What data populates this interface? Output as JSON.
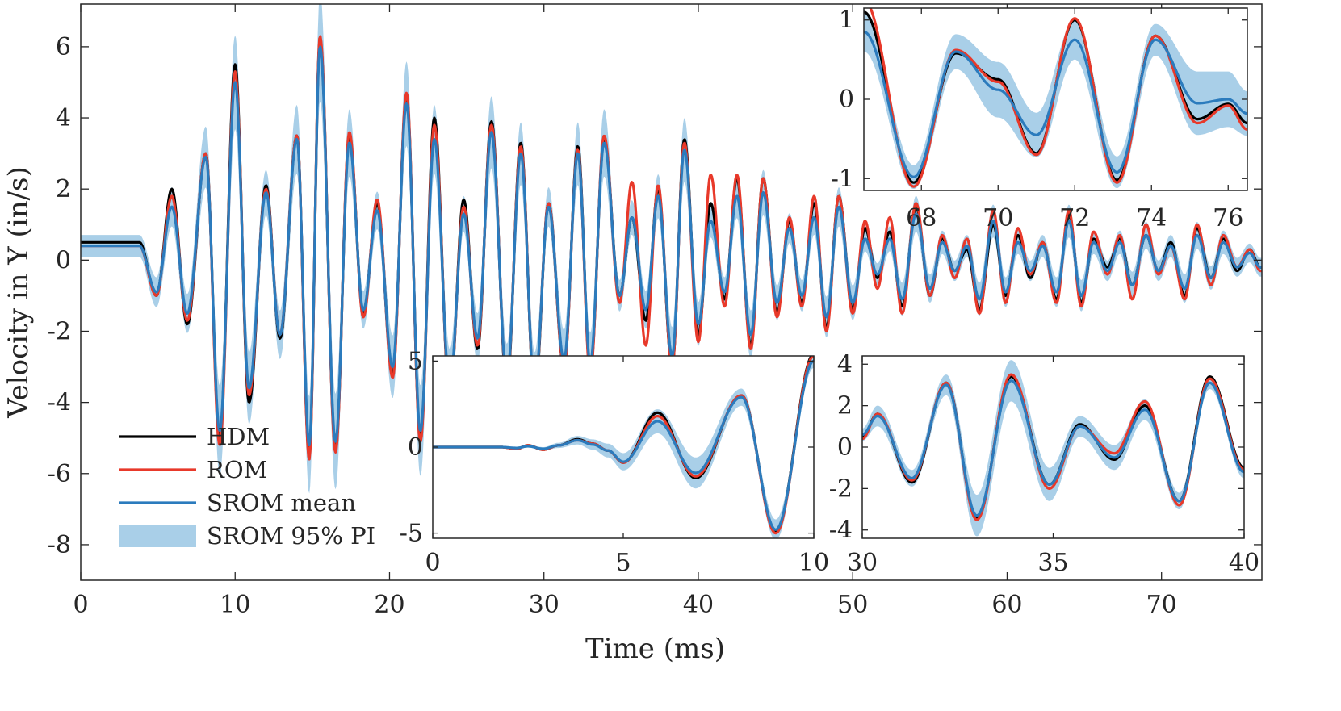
{
  "colors": {
    "hdm": "#000000",
    "rom": "#e8392a",
    "srom_mean": "#2b7bbd",
    "srom_pi": "#a9cfe8",
    "axis": "#262626"
  },
  "chart_data": [
    {
      "id": "main",
      "type": "line",
      "xlabel": "Time (ms)",
      "ylabel": "Velocity in Y (in/s)",
      "xlim": [
        0,
        76.5
      ],
      "ylim": [
        -9,
        7.2
      ],
      "xticks": [
        0,
        10,
        20,
        30,
        40,
        50,
        60,
        70
      ],
      "yticks": [
        -8,
        -6,
        -4,
        -2,
        0,
        2,
        4,
        6
      ],
      "xtick_labels": [
        "0",
        "10",
        "20",
        "30",
        "40",
        "50",
        "60",
        "70"
      ],
      "ytick_labels": [
        "-8",
        "-6",
        "-4",
        "-2",
        "0",
        "2",
        "4",
        "6"
      ],
      "legend": {
        "position": "bottom-left",
        "entries": [
          "HDM",
          "ROM",
          "SROM mean",
          "SROM 95% PI"
        ]
      },
      "series": [
        {
          "name": "HDM",
          "color_key": "hdm"
        },
        {
          "name": "ROM",
          "color_key": "rom"
        },
        {
          "name": "SROM mean",
          "color_key": "srom_mean"
        },
        {
          "name": "SROM 95% PI",
          "color_key": "srom_pi",
          "kind": "band"
        }
      ],
      "peaks": {
        "t": [
          3.8,
          4.9,
          5.9,
          6.9,
          8.1,
          9.0,
          10.0,
          10.9,
          12.0,
          12.9,
          14.0,
          14.8,
          15.5,
          16.5,
          17.4,
          18.3,
          19.2,
          20.2,
          21.1,
          22.0,
          22.9,
          23.9,
          24.8,
          25.7,
          26.6,
          27.6,
          28.5,
          29.4,
          30.3,
          31.3,
          32.2,
          33.0,
          33.9,
          34.9,
          35.7,
          36.6,
          37.4,
          38.3,
          39.1,
          40.0,
          40.8,
          41.7,
          42.5,
          43.4,
          44.2,
          45.1,
          45.9,
          46.7,
          47.5,
          48.3,
          49.1,
          50.0,
          50.8,
          51.6,
          52.4,
          53.2,
          54.1,
          55.0,
          55.8,
          56.6,
          57.4,
          58.2,
          59.1,
          59.9,
          60.7,
          61.5,
          62.3,
          63.2,
          64.0,
          64.8,
          65.6,
          66.5,
          67.3,
          68.1,
          69.0,
          69.8,
          70.6,
          71.5,
          72.3,
          73.2,
          74.0,
          74.9,
          75.7,
          76.4
        ],
        "hdm": [
          0.5,
          -1.0,
          2.0,
          -1.8,
          3.0,
          -5.0,
          5.5,
          -4.0,
          2.1,
          -2.2,
          3.5,
          -5.5,
          6.2,
          -5.3,
          3.5,
          -1.5,
          1.6,
          -3.2,
          4.6,
          -5.0,
          4.0,
          -3.8,
          1.7,
          -2.5,
          3.9,
          -3.5,
          3.3,
          -3.8,
          1.6,
          -3.0,
          3.2,
          -3.1,
          3.4,
          -1.0,
          1.2,
          -1.7,
          2.0,
          -3.0,
          3.4,
          -2.1,
          1.6,
          -1.1,
          2.3,
          -2.4,
          2.3,
          -1.5,
          1.1,
          -1.2,
          1.6,
          -1.9,
          1.8,
          -1.4,
          0.9,
          -0.5,
          0.8,
          -1.3,
          1.5,
          -1.0,
          0.6,
          -0.3,
          0.3,
          -1.4,
          1.0,
          -1.0,
          0.7,
          -0.5,
          0.5,
          -1.1,
          1.3,
          -1.2,
          0.6,
          -0.2,
          0.6,
          -0.7,
          0.7,
          -0.3,
          0.5,
          -1.0,
          0.9,
          -0.5,
          0.6,
          -0.3,
          0.3,
          -0.2
        ],
        "rom": [
          0.4,
          -1.0,
          1.8,
          -1.7,
          3.0,
          -5.2,
          5.3,
          -3.8,
          2.0,
          -2.1,
          3.5,
          -5.6,
          6.3,
          -5.4,
          3.6,
          -1.6,
          1.7,
          -3.3,
          4.7,
          -5.1,
          3.8,
          -3.7,
          1.5,
          -2.4,
          3.8,
          -3.4,
          3.2,
          -3.7,
          1.6,
          -3.0,
          3.1,
          -3.2,
          3.5,
          -1.2,
          2.2,
          -2.4,
          2.1,
          -3.0,
          3.3,
          -2.3,
          2.4,
          -1.3,
          2.4,
          -2.5,
          2.3,
          -1.6,
          1.2,
          -1.3,
          1.8,
          -2.0,
          1.8,
          -1.5,
          1.1,
          -0.8,
          1.2,
          -1.5,
          1.6,
          -1.0,
          0.7,
          -0.5,
          0.6,
          -1.5,
          1.4,
          -1.2,
          0.9,
          -0.4,
          0.5,
          -1.2,
          1.4,
          -1.3,
          0.8,
          -0.4,
          0.7,
          -1.1,
          1.0,
          -0.4,
          0.4,
          -1.1,
          1.0,
          -0.7,
          0.7,
          -0.2,
          0.3,
          -0.3
        ],
        "srom": [
          0.4,
          -0.9,
          1.5,
          -1.5,
          2.9,
          -4.8,
          5.0,
          -3.6,
          1.9,
          -2.1,
          3.4,
          -5.2,
          6.0,
          -5.1,
          3.3,
          -1.4,
          1.4,
          -3.0,
          4.4,
          -4.8,
          3.4,
          -3.5,
          1.3,
          -2.2,
          3.6,
          -3.3,
          3.0,
          -3.6,
          1.5,
          -2.8,
          3.0,
          -2.9,
          3.3,
          -1.0,
          1.2,
          -1.4,
          1.8,
          -2.7,
          3.1,
          -1.8,
          1.1,
          -0.9,
          1.8,
          -2.1,
          1.9,
          -1.2,
          0.9,
          -1.0,
          1.2,
          -1.6,
          1.5,
          -1.2,
          0.6,
          -0.4,
          0.6,
          -1.1,
          1.3,
          -0.8,
          0.5,
          -0.3,
          0.4,
          -1.1,
          1.1,
          -0.9,
          0.5,
          -0.3,
          0.4,
          -0.9,
          1.1,
          -1.0,
          0.5,
          -0.3,
          0.5,
          -0.7,
          0.7,
          -0.3,
          0.4,
          -0.8,
          0.7,
          -0.5,
          0.5,
          -0.2,
          0.2,
          -0.2
        ]
      }
    },
    {
      "id": "inset-top-right",
      "type": "line",
      "xlim": [
        66.5,
        76.5
      ],
      "ylim": [
        -1.15,
        1.15
      ],
      "xticks": [
        68,
        70,
        72,
        74,
        76
      ],
      "yticks": [
        -1,
        0,
        1
      ],
      "xtick_labels": [
        "68",
        "70",
        "72",
        "74",
        "76"
      ],
      "ytick_labels": [
        "-1",
        "0",
        "1"
      ],
      "peaks": {
        "t": [
          66.5,
          67.8,
          68.9,
          70.0,
          71.0,
          72.0,
          73.1,
          74.1,
          75.2,
          76.0,
          76.5
        ],
        "hdm": [
          1.1,
          -1.05,
          0.58,
          0.25,
          -0.68,
          1.0,
          -1.02,
          0.8,
          -0.25,
          -0.06,
          -0.3
        ],
        "rom": [
          1.25,
          -1.1,
          0.62,
          0.22,
          -0.7,
          1.02,
          -1.05,
          0.8,
          -0.3,
          -0.08,
          -0.38
        ],
        "srom": [
          0.85,
          -0.98,
          0.6,
          0.12,
          -0.45,
          0.75,
          -0.92,
          0.75,
          -0.05,
          0.0,
          -0.18
        ],
        "pi_half": [
          0.25,
          0.15,
          0.22,
          0.35,
          0.28,
          0.25,
          0.2,
          0.2,
          0.4,
          0.35,
          0.28
        ]
      }
    },
    {
      "id": "inset-bottom-middle",
      "type": "line",
      "xlim": [
        0,
        10
      ],
      "ylim": [
        -5.3,
        5.3
      ],
      "xticks": [
        0,
        5,
        10
      ],
      "yticks": [
        -5,
        0,
        5
      ],
      "xtick_labels": [
        "0",
        "5",
        "10"
      ],
      "ytick_labels": [
        "-5",
        "0",
        "5"
      ],
      "peaks": {
        "t": [
          0,
          1.8,
          2.2,
          2.5,
          2.9,
          3.3,
          3.8,
          4.2,
          4.6,
          5.0,
          5.9,
          6.9,
          8.1,
          9.0,
          10.0
        ],
        "hdm": [
          0,
          0,
          -0.1,
          0.1,
          -0.15,
          0.1,
          0.45,
          0.2,
          -0.2,
          -0.9,
          2.0,
          -1.8,
          3.0,
          -4.9,
          5.4
        ],
        "rom": [
          0,
          0,
          -0.1,
          0.1,
          -0.15,
          0.1,
          0.4,
          0.2,
          -0.2,
          -0.9,
          1.8,
          -1.7,
          3.0,
          -5.0,
          5.3
        ],
        "srom": [
          0,
          0,
          -0.05,
          0.05,
          -0.1,
          0.1,
          0.4,
          0.15,
          -0.2,
          -0.85,
          1.5,
          -1.5,
          2.9,
          -4.8,
          5.0
        ],
        "pi_half": [
          0,
          0.02,
          0.05,
          0.08,
          0.1,
          0.15,
          0.25,
          0.3,
          0.4,
          0.5,
          0.7,
          0.9,
          0.5,
          0.6,
          0.4
        ]
      }
    },
    {
      "id": "inset-bottom-right",
      "type": "line",
      "xlim": [
        30,
        40
      ],
      "ylim": [
        -4.4,
        4.4
      ],
      "xticks": [
        30,
        35,
        40
      ],
      "yticks": [
        -4,
        -2,
        0,
        2,
        4
      ],
      "xtick_labels": [
        "30",
        "35",
        "40"
      ],
      "ytick_labels": [
        "-4",
        "-2",
        "0",
        "2",
        "4"
      ],
      "peaks": {
        "t": [
          30.0,
          30.4,
          31.3,
          32.2,
          33.0,
          33.9,
          34.9,
          35.7,
          36.6,
          37.4,
          38.3,
          39.1,
          40.0
        ],
        "hdm": [
          0.5,
          1.6,
          -1.7,
          3.1,
          -3.4,
          3.4,
          -1.8,
          1.1,
          -0.6,
          2.0,
          -2.6,
          3.4,
          -1.0
        ],
        "rom": [
          0.4,
          1.6,
          -1.6,
          3.1,
          -3.5,
          3.5,
          -2.0,
          1.0,
          -0.3,
          2.2,
          -2.8,
          3.3,
          -1.1
        ],
        "srom": [
          0.6,
          1.5,
          -1.5,
          3.0,
          -3.3,
          3.2,
          -1.8,
          1.0,
          -0.5,
          1.8,
          -2.6,
          3.1,
          -1.2
        ],
        "pi_half": [
          0.3,
          0.5,
          0.4,
          0.5,
          1.0,
          1.0,
          0.8,
          0.5,
          0.6,
          0.5,
          0.4,
          0.3,
          0.3
        ]
      }
    }
  ]
}
